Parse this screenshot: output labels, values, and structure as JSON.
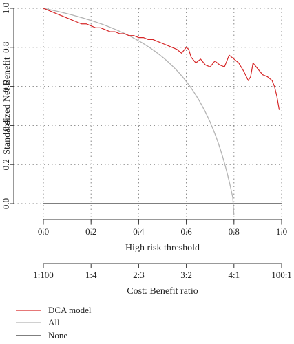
{
  "chart_data": {
    "type": "line",
    "xlabel": "High risk threshold",
    "ylabel": "Standardized Net Benefit",
    "xlim": [
      0,
      1
    ],
    "ylim": [
      -0.06,
      1.0
    ],
    "x_ticks": [
      0.0,
      0.2,
      0.4,
      0.6,
      0.8,
      1.0
    ],
    "x_tick_labels": [
      "0.0",
      "0.2",
      "0.4",
      "0.6",
      "0.8",
      "1.0"
    ],
    "y_ticks": [
      0.0,
      0.2,
      0.4,
      0.6,
      0.8,
      1.0
    ],
    "y_tick_labels": [
      "0.0",
      "0.2",
      "0.4",
      "0.6",
      "0.8",
      "1.0"
    ],
    "grid": true,
    "secondary_axis": {
      "label": "Cost: Benefit ratio",
      "ticks": [
        0.0,
        0.2,
        0.4,
        0.6,
        0.8,
        1.0
      ],
      "tick_labels": [
        "1:100",
        "1:4",
        "2:3",
        "3:2",
        "4:1",
        "100:1"
      ]
    },
    "legend_position": "bottom-left",
    "series": [
      {
        "name": "DCA model",
        "color": "#d62728",
        "x": [
          0.0,
          0.02,
          0.04,
          0.06,
          0.08,
          0.1,
          0.12,
          0.14,
          0.16,
          0.18,
          0.2,
          0.22,
          0.24,
          0.26,
          0.28,
          0.3,
          0.32,
          0.34,
          0.36,
          0.38,
          0.4,
          0.42,
          0.44,
          0.46,
          0.48,
          0.5,
          0.52,
          0.54,
          0.56,
          0.58,
          0.6,
          0.61,
          0.62,
          0.64,
          0.66,
          0.68,
          0.7,
          0.72,
          0.74,
          0.76,
          0.78,
          0.8,
          0.82,
          0.84,
          0.86,
          0.87,
          0.88,
          0.9,
          0.92,
          0.94,
          0.96,
          0.97,
          0.98,
          0.99
        ],
        "y": [
          1.0,
          0.99,
          0.98,
          0.97,
          0.96,
          0.95,
          0.94,
          0.93,
          0.92,
          0.92,
          0.91,
          0.9,
          0.9,
          0.89,
          0.88,
          0.88,
          0.87,
          0.87,
          0.86,
          0.86,
          0.85,
          0.85,
          0.84,
          0.84,
          0.83,
          0.82,
          0.81,
          0.8,
          0.79,
          0.77,
          0.8,
          0.79,
          0.75,
          0.72,
          0.74,
          0.71,
          0.7,
          0.73,
          0.71,
          0.7,
          0.76,
          0.74,
          0.72,
          0.68,
          0.63,
          0.65,
          0.72,
          0.69,
          0.66,
          0.65,
          0.63,
          0.6,
          0.55,
          0.48
        ]
      },
      {
        "name": "All",
        "color": "#b3b3b3",
        "prevalence_approx": 0.8
      },
      {
        "name": "None",
        "color": "#333333",
        "x": [
          0.0,
          1.0
        ],
        "y": [
          0.0,
          0.0
        ]
      }
    ]
  }
}
